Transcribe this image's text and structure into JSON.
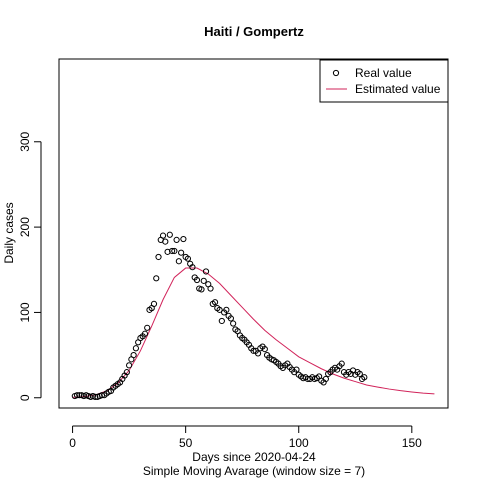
{
  "chart_data": {
    "type": "scatter",
    "title": "Haiti / Gompertz",
    "xlabel": "Days since 2020-04-24",
    "subtitle": "Simple Moving Avarage (window size = 7)",
    "ylabel": "Daily cases",
    "xlim": [
      -6,
      166
    ],
    "ylim": [
      -12,
      397
    ],
    "x_ticks": [
      0,
      50,
      100,
      150
    ],
    "y_ticks": [
      0,
      100,
      200,
      300
    ],
    "grid": false,
    "legend_position": "top-right",
    "series": [
      {
        "name": "Real value",
        "kind": "points",
        "color": "#000000",
        "points": [
          [
            1,
            2
          ],
          [
            2,
            3
          ],
          [
            3,
            3
          ],
          [
            4,
            3
          ],
          [
            5,
            2
          ],
          [
            6,
            3
          ],
          [
            7,
            2
          ],
          [
            8,
            1
          ],
          [
            9,
            2
          ],
          [
            10,
            1
          ],
          [
            11,
            1
          ],
          [
            12,
            2
          ],
          [
            13,
            3
          ],
          [
            14,
            3
          ],
          [
            15,
            5
          ],
          [
            16,
            7
          ],
          [
            17,
            8
          ],
          [
            18,
            12
          ],
          [
            19,
            14
          ],
          [
            20,
            16
          ],
          [
            21,
            18
          ],
          [
            22,
            22
          ],
          [
            23,
            26
          ],
          [
            24,
            30
          ],
          [
            25,
            38
          ],
          [
            26,
            45
          ],
          [
            27,
            50
          ],
          [
            28,
            58
          ],
          [
            29,
            65
          ],
          [
            30,
            70
          ],
          [
            31,
            72
          ],
          [
            32,
            75
          ],
          [
            33,
            82
          ],
          [
            34,
            103
          ],
          [
            35,
            105
          ],
          [
            36,
            110
          ],
          [
            37,
            140
          ],
          [
            38,
            165
          ],
          [
            39,
            185
          ],
          [
            40,
            190
          ],
          [
            41,
            183
          ],
          [
            42,
            171
          ],
          [
            43,
            191
          ],
          [
            44,
            172
          ],
          [
            45,
            172
          ],
          [
            46,
            185
          ],
          [
            47,
            160
          ],
          [
            48,
            170
          ],
          [
            49,
            186
          ],
          [
            50,
            165
          ],
          [
            51,
            163
          ],
          [
            52,
            157
          ],
          [
            53,
            153
          ],
          [
            54,
            141
          ],
          [
            55,
            138
          ],
          [
            56,
            128
          ],
          [
            57,
            127
          ],
          [
            58,
            137
          ],
          [
            59,
            148
          ],
          [
            60,
            133
          ],
          [
            61,
            128
          ],
          [
            62,
            110
          ],
          [
            63,
            112
          ],
          [
            64,
            105
          ],
          [
            65,
            103
          ],
          [
            66,
            90
          ],
          [
            67,
            100
          ],
          [
            68,
            103
          ],
          [
            69,
            96
          ],
          [
            70,
            93
          ],
          [
            71,
            87
          ],
          [
            72,
            80
          ],
          [
            73,
            78
          ],
          [
            74,
            73
          ],
          [
            75,
            70
          ],
          [
            76,
            68
          ],
          [
            77,
            65
          ],
          [
            78,
            62
          ],
          [
            79,
            58
          ],
          [
            80,
            55
          ],
          [
            81,
            55
          ],
          [
            82,
            52
          ],
          [
            83,
            58
          ],
          [
            84,
            60
          ],
          [
            85,
            57
          ],
          [
            86,
            50
          ],
          [
            87,
            47
          ],
          [
            88,
            45
          ],
          [
            89,
            44
          ],
          [
            90,
            42
          ],
          [
            91,
            40
          ],
          [
            92,
            37
          ],
          [
            93,
            35
          ],
          [
            94,
            38
          ],
          [
            95,
            40
          ],
          [
            96,
            36
          ],
          [
            97,
            33
          ],
          [
            98,
            30
          ],
          [
            99,
            33
          ],
          [
            100,
            27
          ],
          [
            101,
            25
          ],
          [
            102,
            23
          ],
          [
            103,
            24
          ],
          [
            104,
            22
          ],
          [
            105,
            22
          ],
          [
            106,
            24
          ],
          [
            107,
            22
          ],
          [
            108,
            23
          ],
          [
            109,
            25
          ],
          [
            110,
            20
          ],
          [
            111,
            18
          ],
          [
            112,
            22
          ],
          [
            113,
            28
          ],
          [
            114,
            30
          ],
          [
            115,
            33
          ],
          [
            116,
            35
          ],
          [
            117,
            33
          ],
          [
            118,
            37
          ],
          [
            119,
            40
          ],
          [
            120,
            30
          ],
          [
            121,
            27
          ],
          [
            122,
            30
          ],
          [
            123,
            28
          ],
          [
            124,
            32
          ],
          [
            125,
            27
          ],
          [
            126,
            30
          ],
          [
            127,
            28
          ],
          [
            128,
            22
          ],
          [
            129,
            24
          ]
        ]
      },
      {
        "name": "Estimated value",
        "kind": "line",
        "color": "#d1235a",
        "points": [
          [
            0,
            0.4
          ],
          [
            5,
            1.3
          ],
          [
            10,
            3.3
          ],
          [
            15,
            7.9
          ],
          [
            20,
            17
          ],
          [
            25,
            32
          ],
          [
            30,
            55
          ],
          [
            35,
            84
          ],
          [
            40,
            115
          ],
          [
            45,
            141
          ],
          [
            50,
            152
          ],
          [
            55,
            152
          ],
          [
            60,
            145
          ],
          [
            65,
            134
          ],
          [
            70,
            120
          ],
          [
            75,
            106
          ],
          [
            80,
            92
          ],
          [
            85,
            79
          ],
          [
            90,
            68
          ],
          [
            95,
            58
          ],
          [
            100,
            48
          ],
          [
            105,
            41
          ],
          [
            110,
            34
          ],
          [
            115,
            28
          ],
          [
            120,
            23
          ],
          [
            125,
            19
          ],
          [
            130,
            15
          ],
          [
            135,
            12.5
          ],
          [
            140,
            10.2
          ],
          [
            145,
            8.3
          ],
          [
            150,
            6.8
          ],
          [
            155,
            5.5
          ],
          [
            160,
            4.5
          ]
        ]
      }
    ]
  }
}
